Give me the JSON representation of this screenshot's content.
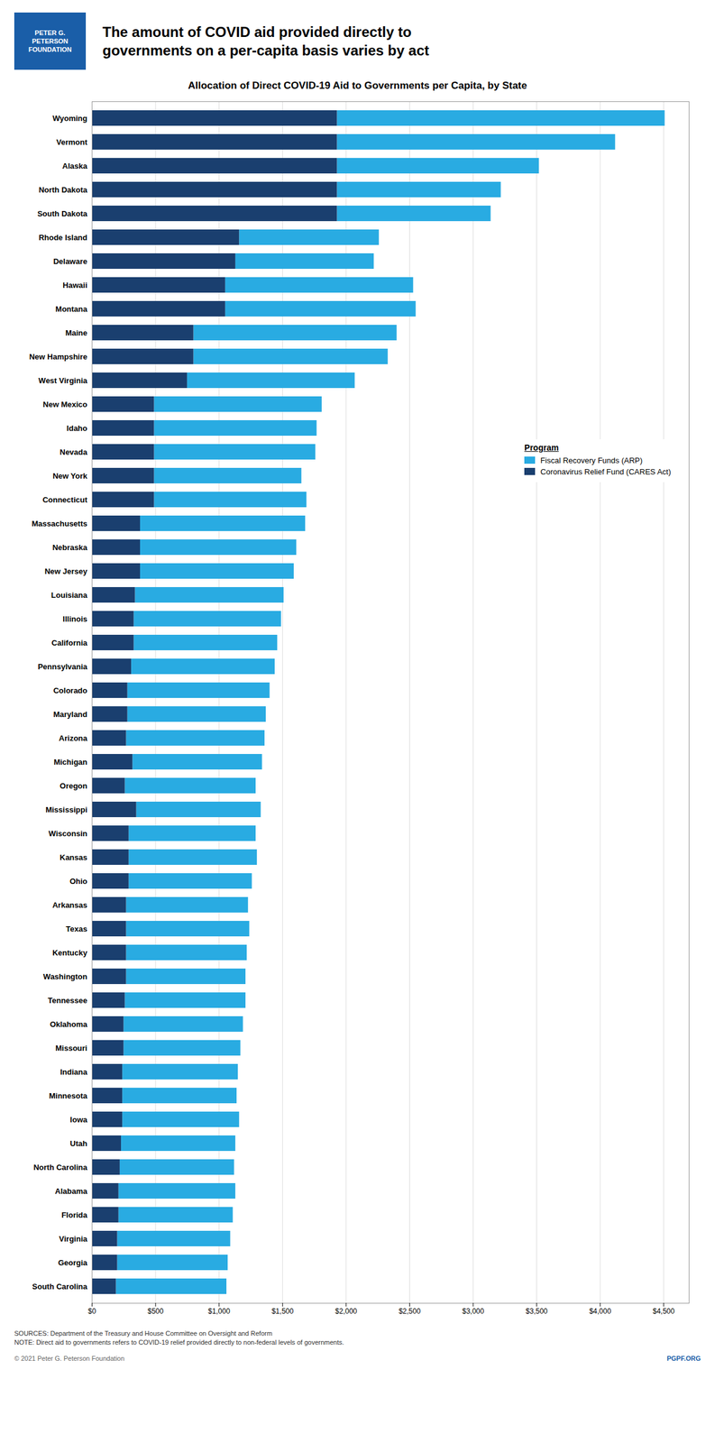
{
  "chart_data": {
    "type": "bar",
    "orientation": "horizontal",
    "stacked": true,
    "title": "The amount of COVID aid provided directly to\ngovernments on a per-capita basis varies by act",
    "subtitle": "Allocation of Direct COVID-19 Aid to Governments per Capita, by State",
    "legend_title": "Program",
    "legend": "right",
    "grid": true,
    "categories": [
      "Wyoming",
      "Vermont",
      "Alaska",
      "North Dakota",
      "South Dakota",
      "Rhode Island",
      "Delaware",
      "Hawaii",
      "Montana",
      "Maine",
      "New Hampshire",
      "West Virginia",
      "New Mexico",
      "Idaho",
      "Nevada",
      "New York",
      "Connecticut",
      "Massachusetts",
      "Nebraska",
      "New Jersey",
      "Louisiana",
      "Illinois",
      "California",
      "Pennsylvania",
      "Colorado",
      "Maryland",
      "Arizona",
      "Michigan",
      "Oregon",
      "Mississippi",
      "Wisconsin",
      "Kansas",
      "Ohio",
      "Arkansas",
      "Texas",
      "Kentucky",
      "Washington",
      "Tennessee",
      "Oklahoma",
      "Missouri",
      "Indiana",
      "Minnesota",
      "Iowa",
      "Utah",
      "North Carolina",
      "Alabama",
      "Florida",
      "Virginia",
      "Georgia",
      "South Carolina"
    ],
    "series": [
      {
        "name": "Fiscal Recovery Funds (ARP)",
        "color": "#29ABE2",
        "values": [
          2580,
          2190,
          1590,
          1290,
          1210,
          1100,
          1090,
          1480,
          1500,
          1600,
          1530,
          1320,
          1320,
          1280,
          1270,
          1160,
          1200,
          1300,
          1230,
          1210,
          1170,
          1160,
          1130,
          1130,
          1120,
          1090,
          1090,
          1020,
          1030,
          980,
          1000,
          1010,
          970,
          960,
          970,
          950,
          940,
          950,
          940,
          920,
          910,
          900,
          920,
          900,
          900,
          920,
          900,
          890,
          870,
          870
        ]
      },
      {
        "name": "Coronavirus Relief Fund (CARES Act)",
        "color": "#1A3F6F",
        "values": [
          1930,
          1930,
          1930,
          1930,
          1930,
          1160,
          1130,
          1050,
          1050,
          800,
          800,
          750,
          490,
          490,
          490,
          490,
          490,
          380,
          380,
          380,
          340,
          330,
          330,
          310,
          280,
          280,
          270,
          320,
          260,
          350,
          290,
          290,
          290,
          270,
          270,
          270,
          270,
          260,
          250,
          250,
          240,
          240,
          240,
          230,
          220,
          210,
          210,
          200,
          200,
          190
        ]
      }
    ],
    "xlim": [
      0,
      4700
    ],
    "xticks": [
      {
        "value": 0,
        "label": "$0"
      },
      {
        "value": 500,
        "label": "$500"
      },
      {
        "value": 1000,
        "label": "$1,000"
      },
      {
        "value": 1500,
        "label": "$1,500"
      },
      {
        "value": 2000,
        "label": "$2,000"
      },
      {
        "value": 2500,
        "label": "$2,500"
      },
      {
        "value": 3000,
        "label": "$3,000"
      },
      {
        "value": 3500,
        "label": "$3,500"
      },
      {
        "value": 4000,
        "label": "$4,000"
      },
      {
        "value": 4500,
        "label": "$4,500"
      }
    ],
    "annotations": [
      {
        "text": "PETER G.\nPETERSON\nFOUNDATION",
        "color": "#1A5EA8"
      },
      {
        "text": "SOURCES: Department of the Treasury and House Committee on Oversight and Reform\nNOTE: Direct aid to governments refers to COVID-19 relief provided directly to non-federal levels of governments."
      },
      {
        "text": "© 2021 Peter G. Peterson Foundation"
      },
      {
        "text": "PGPF.ORG",
        "color": "#1A5EA8"
      }
    ]
  }
}
